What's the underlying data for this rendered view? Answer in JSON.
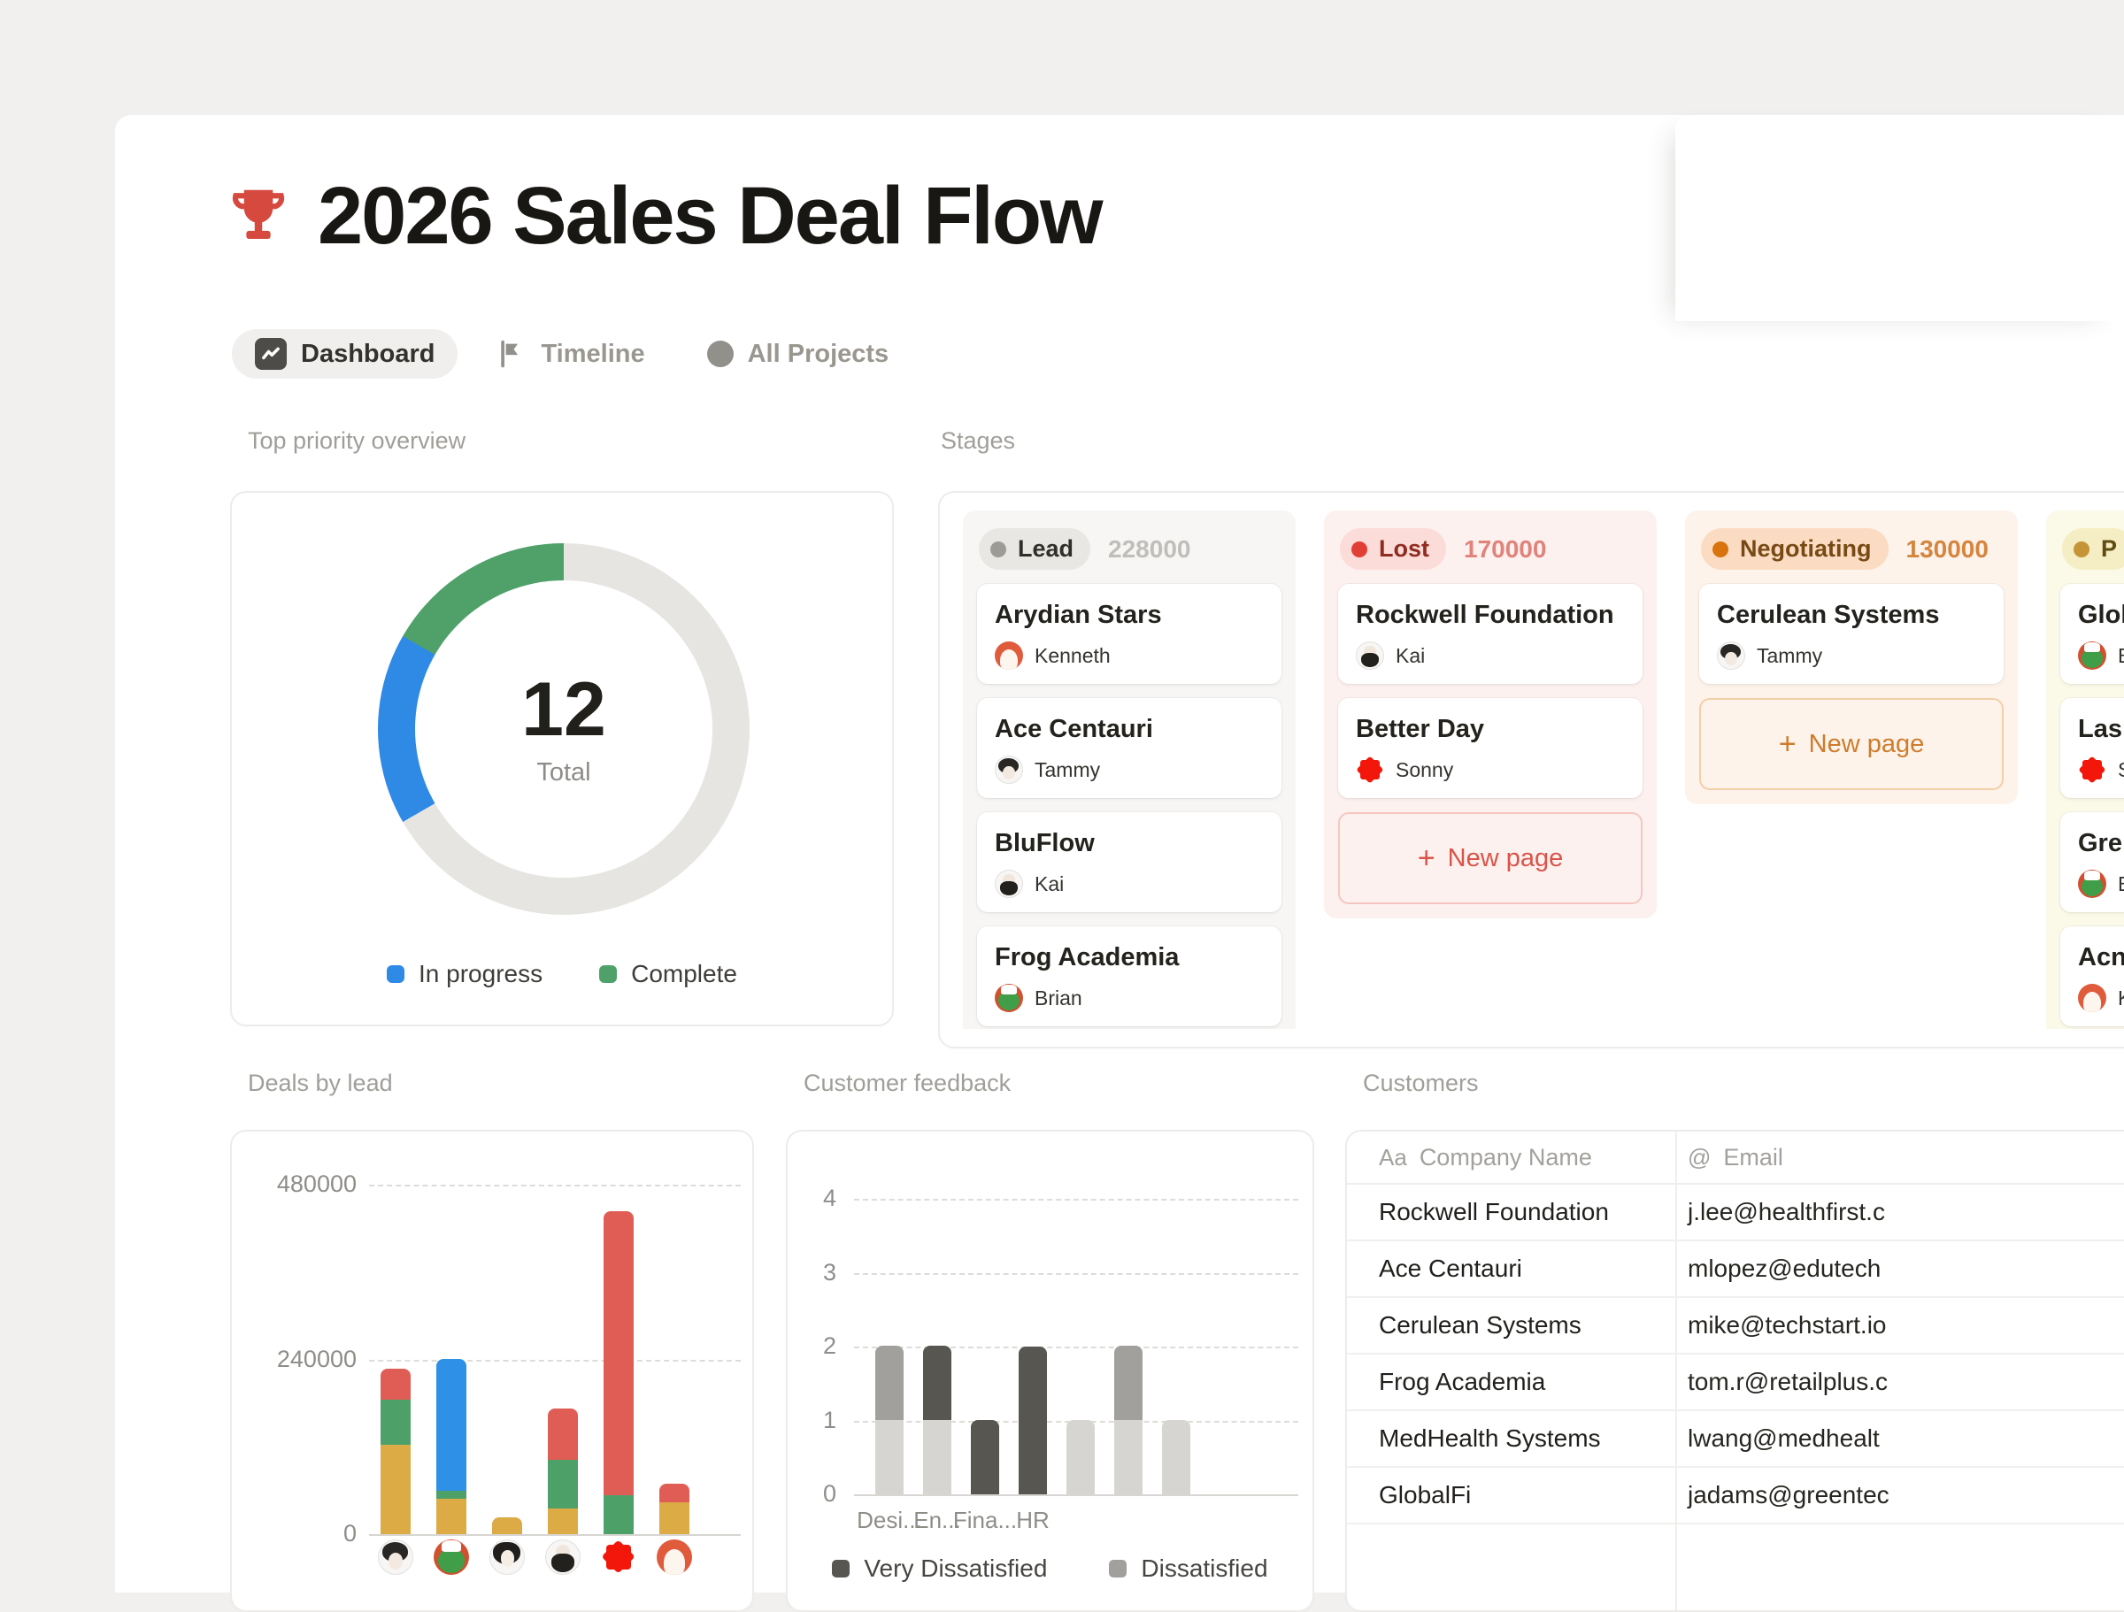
{
  "window": {
    "background": "#f2f0ee"
  },
  "header": {
    "title": "2026 Sales Deal Flow",
    "icon": "trophy-red",
    "icon_color": "#d6493f"
  },
  "tabs": [
    {
      "label": "Dashboard",
      "icon": "chart",
      "active": true
    },
    {
      "label": "Timeline",
      "icon": "flag",
      "active": false
    },
    {
      "label": "All Projects",
      "icon": "circle",
      "active": false
    }
  ],
  "priority": {
    "label": "Top priority overview",
    "total": "12",
    "total_label": "Total",
    "legend": [
      {
        "label": "In progress",
        "color": "#2f8ae6"
      },
      {
        "label": "Complete",
        "color": "#4fa169"
      }
    ],
    "chart_data": {
      "type": "donut",
      "total": 12,
      "segments": [
        {
          "label": "Other",
          "value": 8,
          "color": "#e6e5e2"
        },
        {
          "label": "In progress",
          "value": 2,
          "color": "#2f8ae6"
        },
        {
          "label": "Complete",
          "value": 2,
          "color": "#4fa169"
        }
      ]
    }
  },
  "stages": {
    "label": "Stages",
    "new_page_label": "New page",
    "columns": [
      {
        "name": "Lead",
        "count": "228000",
        "theme": "gray",
        "new_page": false,
        "cards": [
          {
            "title": "Arydian Stars",
            "assignee": "Kenneth",
            "avatar": "kenneth"
          },
          {
            "title": "Ace Centauri",
            "assignee": "Tammy",
            "avatar": "tammy"
          },
          {
            "title": "BluFlow",
            "assignee": "Kai",
            "avatar": "kai"
          },
          {
            "title": "Frog Academia",
            "assignee": "Brian",
            "avatar": "brian"
          }
        ]
      },
      {
        "name": "Lost",
        "count": "170000",
        "theme": "red",
        "new_page": true,
        "cards": [
          {
            "title": "Rockwell Foundation",
            "assignee": "Kai",
            "avatar": "kai"
          },
          {
            "title": "Better Day",
            "assignee": "Sonny",
            "avatar": "sonny"
          }
        ]
      },
      {
        "name": "Negotiating",
        "count": "130000",
        "theme": "orange",
        "new_page": true,
        "cards": [
          {
            "title": "Cerulean Systems",
            "assignee": "Tammy",
            "avatar": "tammy"
          }
        ]
      },
      {
        "name": "P",
        "count": "",
        "theme": "yellow",
        "new_page": false,
        "cards": [
          {
            "title": "GlobalFi",
            "assignee": "Brian",
            "avatar": "brian"
          },
          {
            "title": "Las",
            "assignee": "Sonny",
            "avatar": "sonny"
          },
          {
            "title": "Gre",
            "assignee": "Brian",
            "avatar": "brian"
          },
          {
            "title": "Acn",
            "assignee": "Kenneth",
            "avatar": "kenneth"
          }
        ]
      }
    ]
  },
  "deals": {
    "label": "Deals by lead",
    "chart_data": {
      "type": "stacked-bar",
      "title": "Deals by lead",
      "y_ticks": [
        "0",
        "240000",
        "480000"
      ],
      "ylim": [
        0,
        500000
      ],
      "grid": true,
      "categories": [
        "tammy",
        "brian",
        "mary",
        "kai",
        "sonny",
        "kenneth"
      ],
      "series": [
        {
          "name": "yellow",
          "color": "#dcab46",
          "values": [
            123000,
            48000,
            23000,
            35000,
            0,
            44000
          ]
        },
        {
          "name": "green",
          "color": "#4da168",
          "values": [
            62000,
            11000,
            0,
            67000,
            53000,
            0
          ]
        },
        {
          "name": "red",
          "color": "#e05d55",
          "values": [
            43000,
            0,
            0,
            70000,
            390000,
            25000
          ]
        },
        {
          "name": "blue",
          "color": "#2e90e7",
          "values": [
            0,
            181000,
            0,
            0,
            0,
            0
          ]
        }
      ]
    }
  },
  "feedback": {
    "label": "Customer feedback",
    "legend": [
      {
        "label": "Very Dissatisfied",
        "color": "#575651"
      },
      {
        "label": "Dissatisfied",
        "color": "#a2a09c"
      }
    ],
    "chart_data": {
      "type": "stacked-bar",
      "title": "Customer feedback",
      "y_ticks": [
        "0",
        "1",
        "2",
        "3",
        "4"
      ],
      "ylim": [
        0,
        4
      ],
      "grid": true,
      "categories": [
        "Desi...",
        "En...",
        "Fina...",
        "HR",
        "",
        "",
        ""
      ],
      "series": [
        {
          "name": "neutral",
          "color": "#d6d5d1",
          "values": [
            1,
            1,
            0,
            0,
            1,
            1,
            1
          ]
        },
        {
          "name": "Dissatisfied",
          "color": "#a2a09c",
          "values": [
            1,
            0,
            0,
            0,
            0,
            1,
            0
          ]
        },
        {
          "name": "Very Dissatisfied",
          "color": "#575651",
          "values": [
            0,
            1,
            1,
            2,
            0,
            0,
            0
          ]
        }
      ],
      "legend_position": "bottom"
    }
  },
  "customers": {
    "label": "Customers",
    "columns": [
      {
        "icon": "Aa",
        "label": "Company Name"
      },
      {
        "icon": "@",
        "label": "Email"
      }
    ],
    "rows": [
      {
        "company": "Rockwell Foundation",
        "email": "j.lee@healthfirst.c"
      },
      {
        "company": "Ace Centauri",
        "email": "mlopez@edutech"
      },
      {
        "company": "Cerulean Systems",
        "email": "mike@techstart.io"
      },
      {
        "company": "Frog Academia",
        "email": "tom.r@retailplus.c"
      },
      {
        "company": "MedHealth Systems",
        "email": "lwang@medhealt"
      },
      {
        "company": "GlobalFi",
        "email": "jadams@greentec"
      }
    ]
  }
}
